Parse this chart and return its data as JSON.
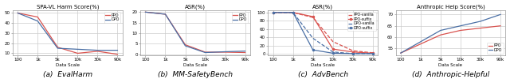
{
  "x_ticks": [
    "100",
    "1k",
    "5k",
    "10k",
    "30k",
    "90k"
  ],
  "x_vals": [
    0,
    1,
    2,
    3,
    4,
    5
  ],
  "panel_a": {
    "title": "SPA-VL Harm Score(%)",
    "xlabel": "Data Scale",
    "ylim": [
      8,
      53
    ],
    "yticks": [
      10,
      20,
      30,
      40,
      50
    ],
    "ppo": [
      50,
      46,
      16,
      10,
      12,
      9
    ],
    "dpo": [
      50,
      42,
      15,
      14,
      13,
      13
    ],
    "ppo_color": "#d9534f",
    "dpo_color": "#4a6fa5"
  },
  "panel_b": {
    "title": "ASR(%)",
    "xlabel": "Data Scale",
    "ylim": [
      -0.5,
      21
    ],
    "yticks": [
      0,
      5,
      10,
      15,
      20
    ],
    "ppo": [
      20,
      19,
      4.5,
      1.0,
      1.0,
      0.8
    ],
    "dpo": [
      20,
      19,
      4.0,
      0.8,
      1.2,
      1.5
    ],
    "ppo_color": "#d9534f",
    "dpo_color": "#4a6fa5"
  },
  "panel_c": {
    "title": "ASR(%)",
    "xlabel": "Data Scale",
    "ylim": [
      -3,
      106
    ],
    "yticks": [
      0,
      20,
      40,
      60,
      80,
      100
    ],
    "ppo_vanilla": [
      100,
      100,
      88,
      30,
      8,
      3
    ],
    "ppo_suffix": [
      100,
      100,
      90,
      12,
      5,
      2
    ],
    "dpo_vanilla": [
      100,
      100,
      38,
      5,
      1,
      1
    ],
    "dpo_suffix": [
      100,
      100,
      10,
      2,
      1,
      1
    ],
    "ppo_color": "#d9534f",
    "dpo_color": "#4a6fa5"
  },
  "panel_d": {
    "title": "Anthropic Help Score(%)",
    "xlabel": "Data Scale",
    "ylim": [
      52,
      72
    ],
    "yticks": [
      55,
      60,
      65,
      70
    ],
    "ppo": [
      53,
      57,
      61,
      63,
      64,
      65
    ],
    "dpo": [
      53,
      58,
      63,
      65,
      67,
      70
    ],
    "ppo_color": "#d9534f",
    "dpo_color": "#4a6fa5"
  },
  "caption_a": "(a)  EvalHarm",
  "caption_b": "(b)  MM-SafetyBench",
  "caption_c": "(c)  AdvBench",
  "caption_d": "(d)  Anthropic-Helpful"
}
